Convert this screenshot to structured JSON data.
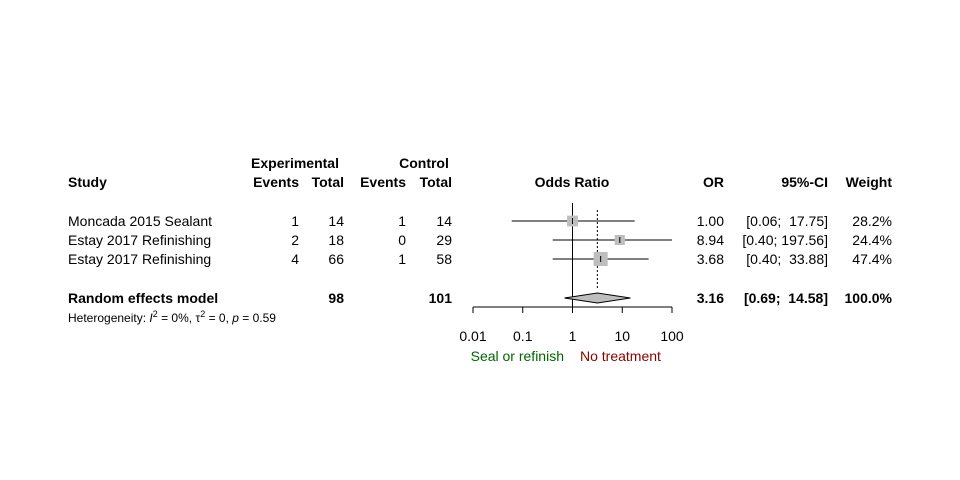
{
  "chart_data": {
    "type": "forest",
    "headers": {
      "study": "Study",
      "experimental": "Experimental",
      "control": "Control",
      "events": "Events",
      "total": "Total",
      "effect": "Odds Ratio",
      "or": "OR",
      "ci": "95%-CI",
      "weight": "Weight"
    },
    "studies": [
      {
        "name": "Moncada 2015 Sealant",
        "exp_events": "1",
        "exp_total": "14",
        "ctl_events": "1",
        "ctl_total": "14",
        "or": 1.0,
        "ci_low": 0.06,
        "ci_high": 17.75,
        "weight": 28.2,
        "or_text": "1.00",
        "ci_text": "[0.06;  17.75]",
        "weight_text": "28.2%"
      },
      {
        "name": "Estay 2017 Refinishing",
        "exp_events": "2",
        "exp_total": "18",
        "ctl_events": "0",
        "ctl_total": "29",
        "or": 8.94,
        "ci_low": 0.4,
        "ci_high": 197.56,
        "weight": 24.4,
        "or_text": "8.94",
        "ci_text": "[0.40; 197.56]",
        "weight_text": "24.4%"
      },
      {
        "name": "Estay 2017 Refinishing",
        "exp_events": "4",
        "exp_total": "66",
        "ctl_events": "1",
        "ctl_total": "58",
        "or": 3.68,
        "ci_low": 0.4,
        "ci_high": 33.88,
        "weight": 47.4,
        "or_text": "3.68",
        "ci_text": "[0.40;  33.88]",
        "weight_text": "47.4%"
      }
    ],
    "pooled": {
      "name": "Random effects model",
      "exp_total": "98",
      "ctl_total": "101",
      "or": 3.16,
      "ci_low": 0.69,
      "ci_high": 14.58,
      "or_text": "3.16",
      "ci_text": "[0.69;  14.58]",
      "weight_text": "100.0%"
    },
    "heterogeneity": {
      "prefix": "Heterogeneity: ",
      "i2_sym": "I",
      "i2": "= 0%, ",
      "tau_sym": "τ",
      "tau2": "= 0, ",
      "p_sym": "p",
      "p": " = 0.59"
    },
    "x_axis": {
      "scale": "log",
      "range": [
        0.01,
        100
      ],
      "ticks": [
        0.01,
        0.1,
        1,
        10,
        100
      ],
      "tick_labels": [
        "0.01",
        "0.1",
        "1",
        "10",
        "100"
      ]
    },
    "reference_line": 1,
    "labels": {
      "left": "Seal or refinish",
      "right": "No treatment"
    },
    "colors": {
      "left": "#006400",
      "right": "#8b0000",
      "box": "#bebebe",
      "diamond": "#bebebe",
      "line": "#000000"
    }
  }
}
